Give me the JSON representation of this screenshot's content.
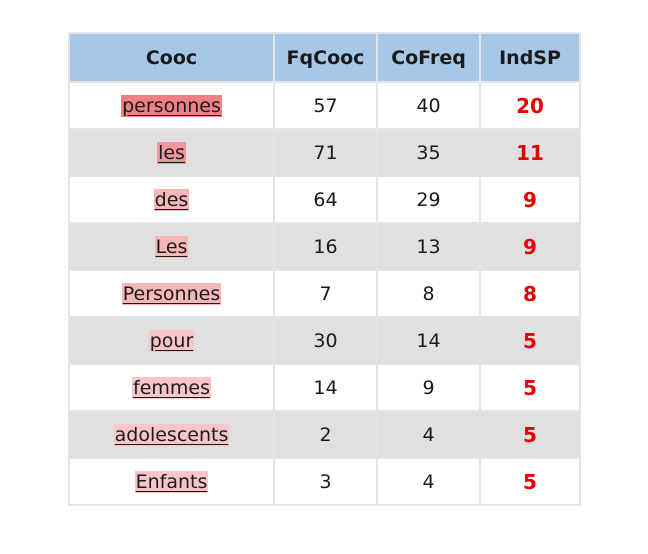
{
  "table": {
    "headers": [
      "Cooc",
      "FqCooc",
      "CoFreq",
      "IndSP"
    ],
    "rows": [
      {
        "cooc": "personnes",
        "fqcooc": "57",
        "cofreq": "40",
        "indsp": "20",
        "highlight": "#f07f86"
      },
      {
        "cooc": "les",
        "fqcooc": "71",
        "cofreq": "35",
        "indsp": "11",
        "highlight": "#f3959a"
      },
      {
        "cooc": "des",
        "fqcooc": "64",
        "cofreq": "29",
        "indsp": "9",
        "highlight": "#f7b6b8"
      },
      {
        "cooc": "Les",
        "fqcooc": "16",
        "cofreq": "13",
        "indsp": "9",
        "highlight": "#f7b6b8"
      },
      {
        "cooc": "Personnes",
        "fqcooc": "7",
        "cofreq": "8",
        "indsp": "8",
        "highlight": "#f7b6b8"
      },
      {
        "cooc": "pour",
        "fqcooc": "30",
        "cofreq": "14",
        "indsp": "5",
        "highlight": "#f9c6c7"
      },
      {
        "cooc": "femmes",
        "fqcooc": "14",
        "cofreq": "9",
        "indsp": "5",
        "highlight": "#f9c6c7"
      },
      {
        "cooc": "adolescents",
        "fqcooc": "2",
        "cofreq": "4",
        "indsp": "5",
        "highlight": "#f9c6c7"
      },
      {
        "cooc": "Enfants",
        "fqcooc": "3",
        "cofreq": "4",
        "indsp": "5",
        "highlight": "#f9c6c7"
      }
    ]
  },
  "colors": {
    "header_bg": "#a7c7e6",
    "stripe_bg": "#e0e0e0",
    "indsp_text": "#e60000"
  }
}
